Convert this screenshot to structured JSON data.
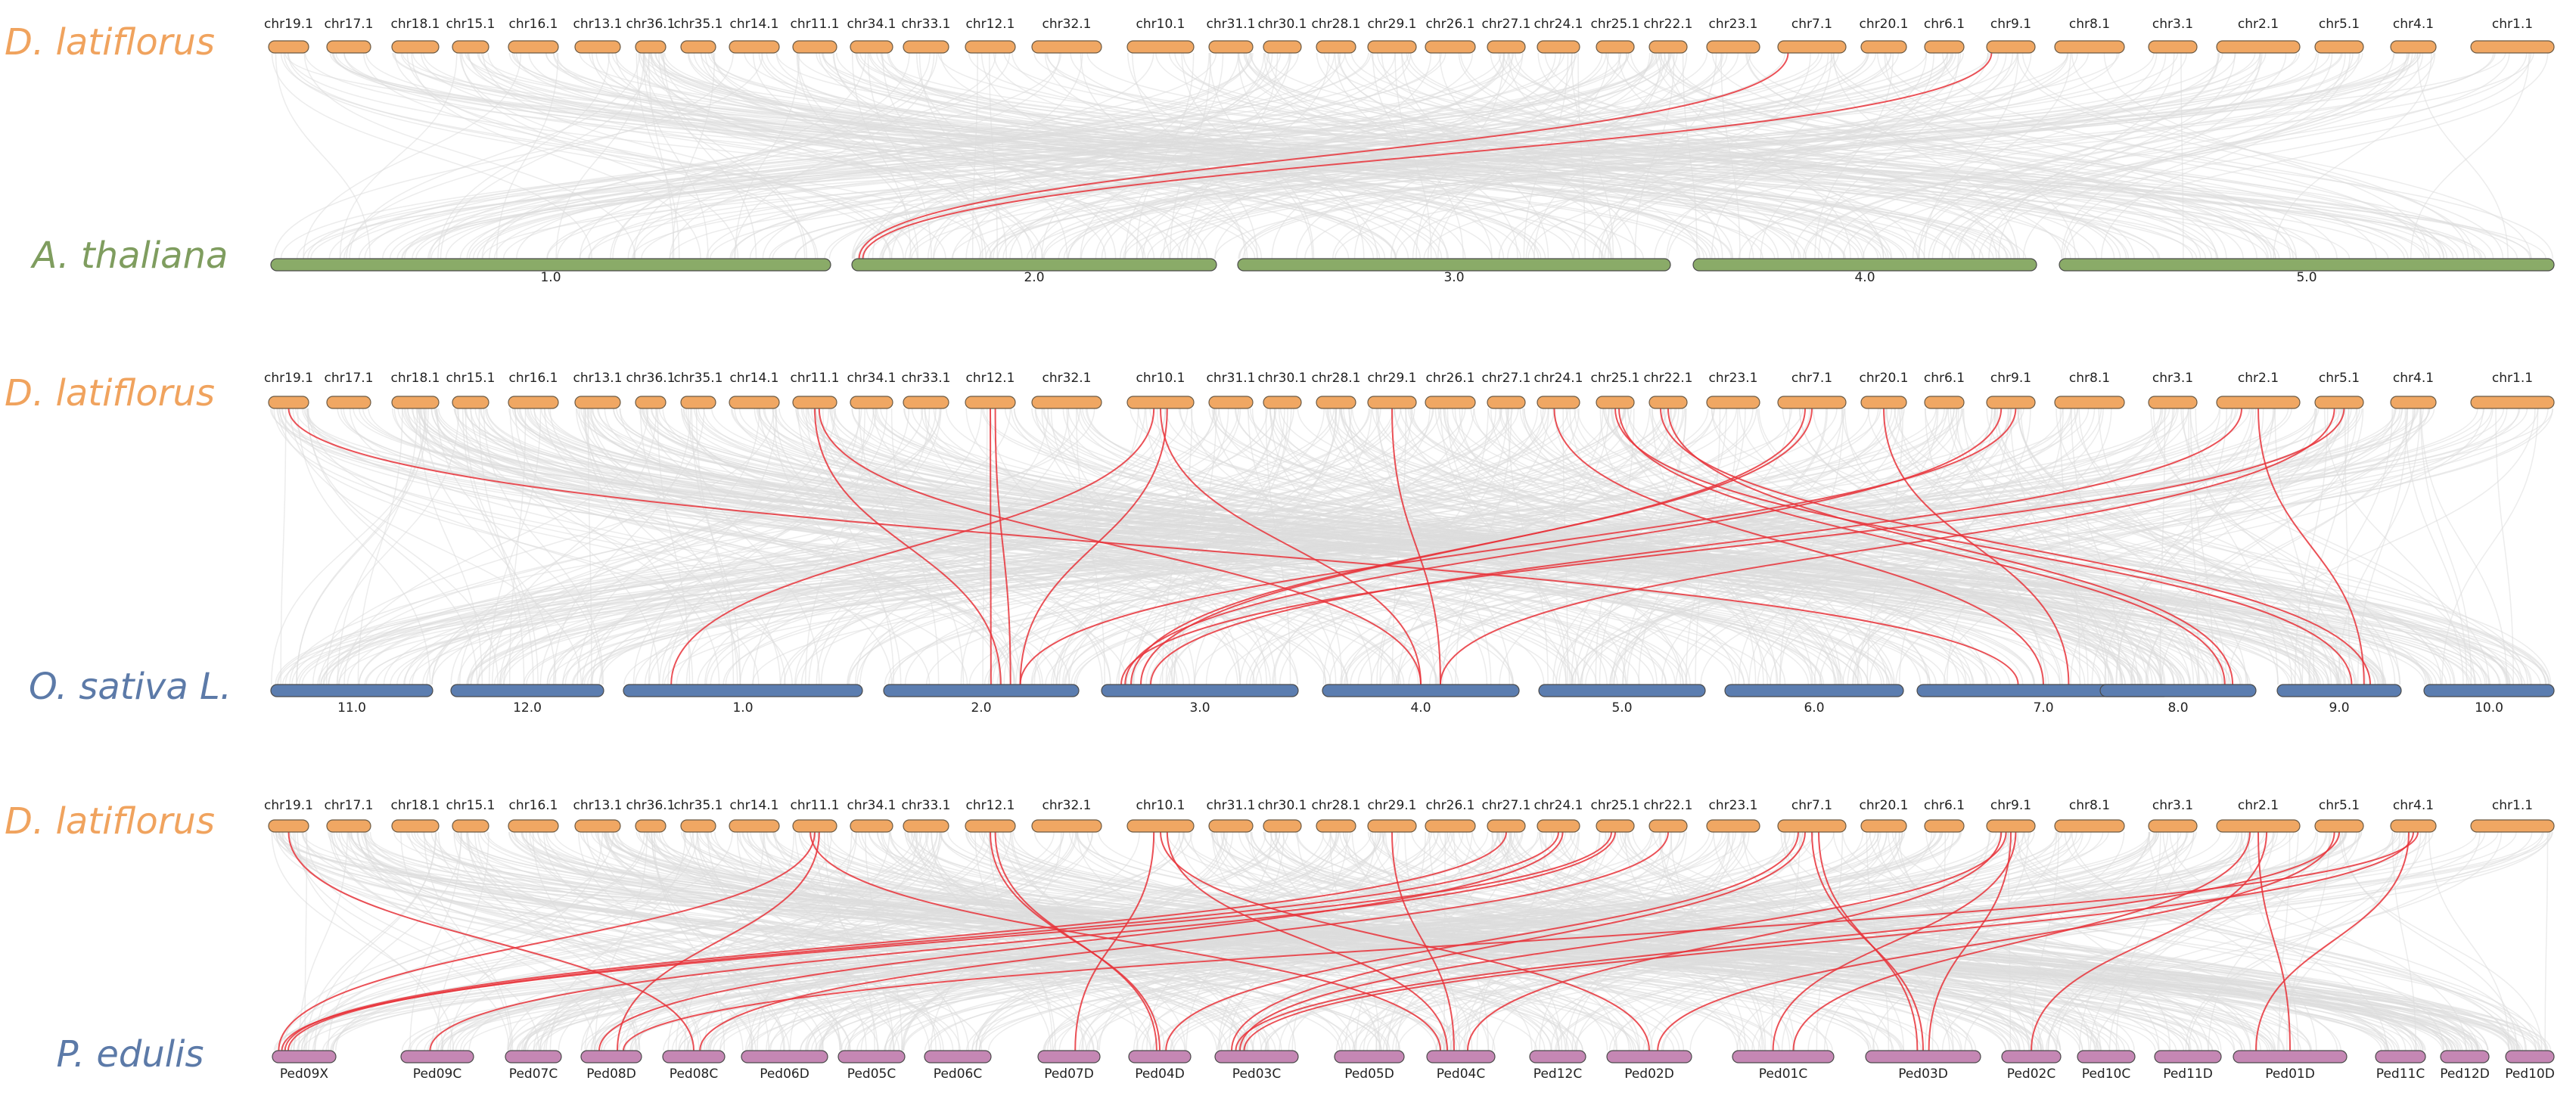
{
  "figure": {
    "panels": [
      {
        "top_species": "D. latiflorus",
        "bottom_species": "A. thaliana",
        "top_chromosomes": [
          "chr19.1",
          "chr17.1",
          "chr18.1",
          "chr15.1",
          "chr16.1",
          "chr13.1",
          "chr36.1",
          "chr35.1",
          "chr14.1",
          "chr11.1",
          "chr34.1",
          "chr33.1",
          "chr12.1",
          "chr32.1",
          "chr10.1",
          "chr31.1",
          "chr30.1",
          "chr28.1",
          "chr29.1",
          "chr26.1",
          "chr27.1",
          "chr24.1",
          "chr25.1",
          "chr22.1",
          "chr23.1",
          "chr7.1",
          "chr20.1",
          "chr6.1",
          "chr9.1",
          "chr8.1",
          "chr3.1",
          "chr2.1",
          "chr5.1",
          "chr4.1",
          "chr1.1"
        ],
        "bottom_chromosomes": [
          "1.0",
          "2.0",
          "3.0",
          "4.0",
          "5.0"
        ]
      },
      {
        "top_species": "D. latiflorus",
        "bottom_species": "O. sativa L.",
        "top_chromosomes": [
          "chr19.1",
          "chr17.1",
          "chr18.1",
          "chr15.1",
          "chr16.1",
          "chr13.1",
          "chr36.1",
          "chr35.1",
          "chr14.1",
          "chr11.1",
          "chr34.1",
          "chr33.1",
          "chr12.1",
          "chr32.1",
          "chr10.1",
          "chr31.1",
          "chr30.1",
          "chr28.1",
          "chr29.1",
          "chr26.1",
          "chr27.1",
          "chr24.1",
          "chr25.1",
          "chr22.1",
          "chr23.1",
          "chr7.1",
          "chr20.1",
          "chr6.1",
          "chr9.1",
          "chr8.1",
          "chr3.1",
          "chr2.1",
          "chr5.1",
          "chr4.1",
          "chr1.1"
        ],
        "bottom_chromosomes": [
          "11.0",
          "12.0",
          "1.0",
          "2.0",
          "3.0",
          "4.0",
          "5.0",
          "6.0",
          "7.0",
          "8.0",
          "9.0",
          "10.0"
        ]
      },
      {
        "top_species": "D. latiflorus",
        "bottom_species": "P. edulis",
        "top_chromosomes": [
          "chr19.1",
          "chr17.1",
          "chr18.1",
          "chr15.1",
          "chr16.1",
          "chr13.1",
          "chr36.1",
          "chr35.1",
          "chr14.1",
          "chr11.1",
          "chr34.1",
          "chr33.1",
          "chr12.1",
          "chr32.1",
          "chr10.1",
          "chr31.1",
          "chr30.1",
          "chr28.1",
          "chr29.1",
          "chr26.1",
          "chr27.1",
          "chr24.1",
          "chr25.1",
          "chr22.1",
          "chr23.1",
          "chr7.1",
          "chr20.1",
          "chr6.1",
          "chr9.1",
          "chr8.1",
          "chr3.1",
          "chr2.1",
          "chr5.1",
          "chr4.1",
          "chr1.1"
        ],
        "bottom_chromosomes": [
          "Ped09X",
          "Ped09C",
          "Ped07C",
          "Ped08D",
          "Ped08C",
          "Ped06D",
          "Ped05C",
          "Ped06C",
          "Ped07D",
          "Ped04D",
          "Ped03C",
          "Ped05D",
          "Ped04C",
          "Ped12C",
          "Ped02D",
          "Ped01C",
          "Ped03D",
          "Ped02C",
          "Ped10C",
          "Ped11D",
          "Ped01D",
          "Ped11C",
          "Ped12D",
          "Ped10D"
        ]
      }
    ],
    "colors": {
      "dlatiflorus": "#f0a763",
      "athaliana": "#8aab68",
      "osativa": "#5b7db0",
      "pedulis": "#c587b4",
      "background_link": "#dcdcdc",
      "highlight_link": "#e8323a",
      "label_dlatiflorus": "#f0a35e",
      "label_athaliana": "#7f9d5f",
      "label_osativa": "#5c7aa8",
      "label_pedulis": "#5c7aa8"
    }
  }
}
